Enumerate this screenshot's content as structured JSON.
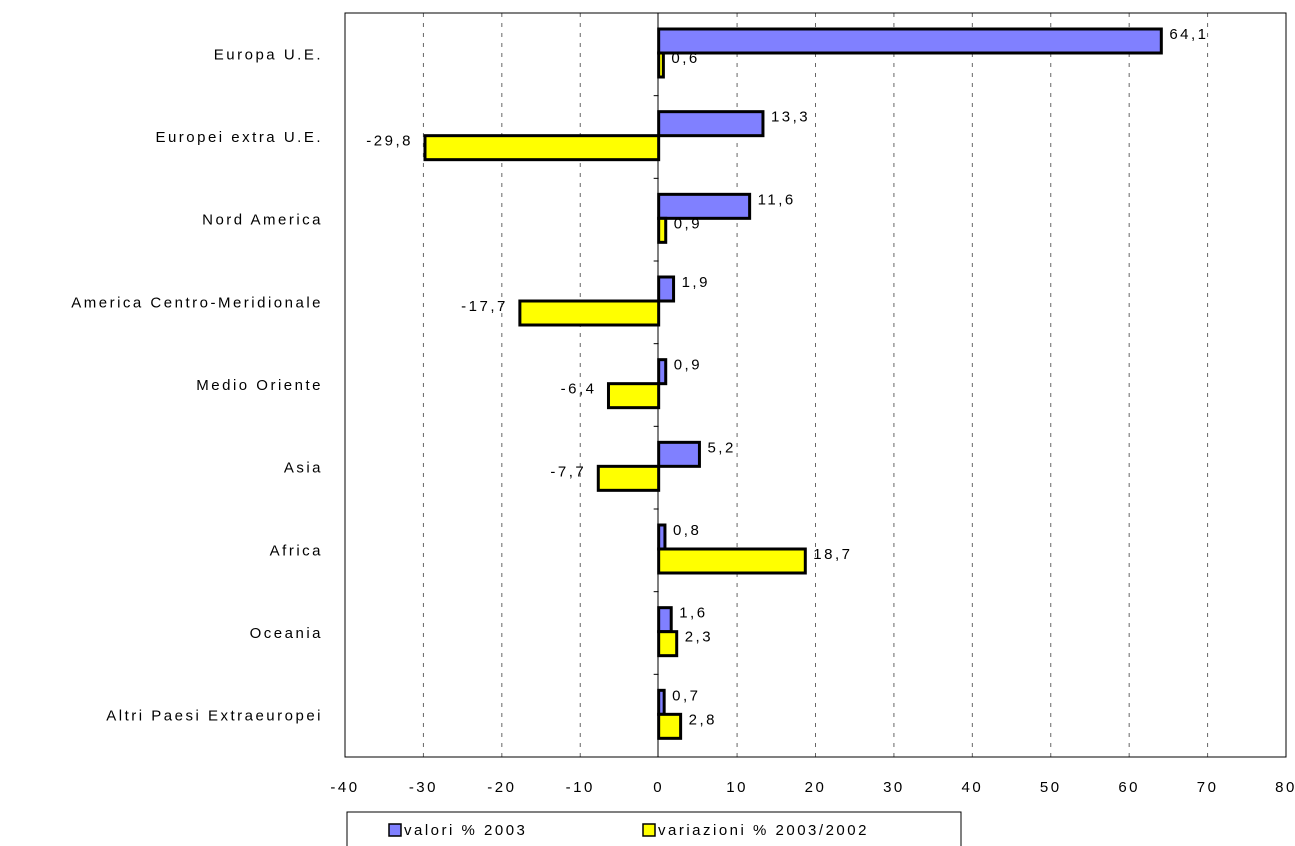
{
  "chart_data": {
    "type": "bar",
    "orientation": "horizontal",
    "title": "",
    "xlabel": "",
    "ylabel": "",
    "categories": [
      "Europa U.E.",
      "Europei extra U.E.",
      "Nord America",
      "America Centro-Meridionale",
      "Medio Oriente",
      "Asia",
      "Africa",
      "Oceania",
      "Altri Paesi Extraeuropei"
    ],
    "series": [
      {
        "name": "valori % 2003",
        "color": "#8080ff",
        "values": [
          64.1,
          13.3,
          11.6,
          1.9,
          0.9,
          5.2,
          0.8,
          1.6,
          0.7
        ],
        "labels": [
          "64,1",
          "13,3",
          "11,6",
          "1,9",
          "0,9",
          "5,2",
          "0,8",
          "1,6",
          "0,7"
        ]
      },
      {
        "name": "variazioni % 2003/2002",
        "color": "#ffff00",
        "values": [
          0.6,
          -29.8,
          0.9,
          -17.7,
          -6.4,
          -7.7,
          18.7,
          2.3,
          2.8
        ],
        "labels": [
          "0,6",
          "-29,8",
          "0,9",
          "-17,7",
          "-6,4",
          "-7,7",
          "18,7",
          "2,3",
          "2,8"
        ]
      }
    ],
    "xlim": [
      -40,
      80
    ],
    "xticks": [
      -40,
      -30,
      -20,
      -10,
      0,
      10,
      20,
      30,
      40,
      50,
      60,
      70,
      80
    ],
    "xtick_labels": [
      "-40",
      "-30",
      "-20",
      "-10",
      "0",
      "10",
      "20",
      "30",
      "40",
      "50",
      "60",
      "70",
      "80"
    ],
    "grid": "vertical dashed",
    "legend_position": "bottom"
  }
}
